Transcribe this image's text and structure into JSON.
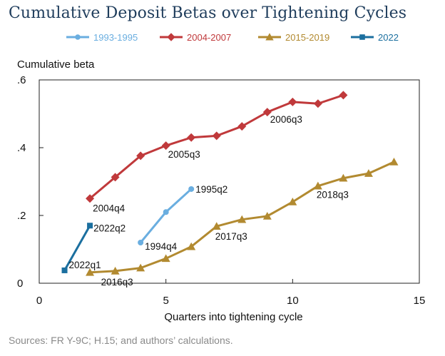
{
  "title": "Cumulative Deposit Betas over Tightening Cycles",
  "source": "Sources: FR Y-9C; H.15; and authors’ calculations.",
  "chart_data": {
    "type": "line",
    "title": "Cumulative Deposit Betas over Tightening Cycles",
    "xlabel": "Quarters into tightening cycle",
    "ylabel": "Cumulative beta",
    "xlim": [
      0,
      15
    ],
    "ylim": [
      0,
      0.6
    ],
    "xticks": [
      0,
      5,
      10,
      15
    ],
    "xtick_labels": [
      "0",
      "5",
      "10",
      "15"
    ],
    "yticks": [
      0,
      0.2,
      0.4,
      0.6
    ],
    "ytick_labels": [
      "0",
      ".2",
      ".4",
      ".6"
    ],
    "grid": false,
    "legend_position": "top",
    "series": [
      {
        "name": "1993-1995",
        "color": "#6aaee0",
        "marker": "circle",
        "x": [
          4,
          5,
          6
        ],
        "y": [
          0.12,
          0.21,
          0.278
        ]
      },
      {
        "name": "2004-2007",
        "color": "#c0393b",
        "marker": "diamond",
        "x": [
          2,
          3,
          4,
          5,
          6,
          7,
          8,
          9,
          10,
          11,
          12
        ],
        "y": [
          0.25,
          0.313,
          0.376,
          0.406,
          0.43,
          0.435,
          0.463,
          0.505,
          0.535,
          0.53,
          0.555
        ]
      },
      {
        "name": "2015-2019",
        "color": "#b28a30",
        "marker": "triangle",
        "x": [
          2,
          3,
          4,
          5,
          6,
          7,
          8,
          9,
          10,
          11,
          12,
          13,
          14
        ],
        "y": [
          0.032,
          0.036,
          0.045,
          0.073,
          0.108,
          0.168,
          0.188,
          0.198,
          0.24,
          0.287,
          0.31,
          0.324,
          0.358
        ]
      },
      {
        "name": "2022",
        "color": "#1b6f9f",
        "marker": "square",
        "x": [
          1,
          2
        ],
        "y": [
          0.038,
          0.17
        ]
      }
    ],
    "annotations": [
      {
        "text": "1995q2",
        "x": 6,
        "y": 0.278
      },
      {
        "text": "1994q4",
        "x": 4,
        "y": 0.12
      },
      {
        "text": "2004q4",
        "x": 2,
        "y": 0.25
      },
      {
        "text": "2005q3",
        "x": 5,
        "y": 0.406
      },
      {
        "text": "2006q3",
        "x": 9,
        "y": 0.505
      },
      {
        "text": "2016q3",
        "x": 3,
        "y": 0.036
      },
      {
        "text": "2017q3",
        "x": 7,
        "y": 0.168
      },
      {
        "text": "2018q3",
        "x": 11,
        "y": 0.287
      },
      {
        "text": "2022q2",
        "x": 2,
        "y": 0.17
      },
      {
        "text": "2022q1",
        "x": 1,
        "y": 0.038
      }
    ]
  }
}
